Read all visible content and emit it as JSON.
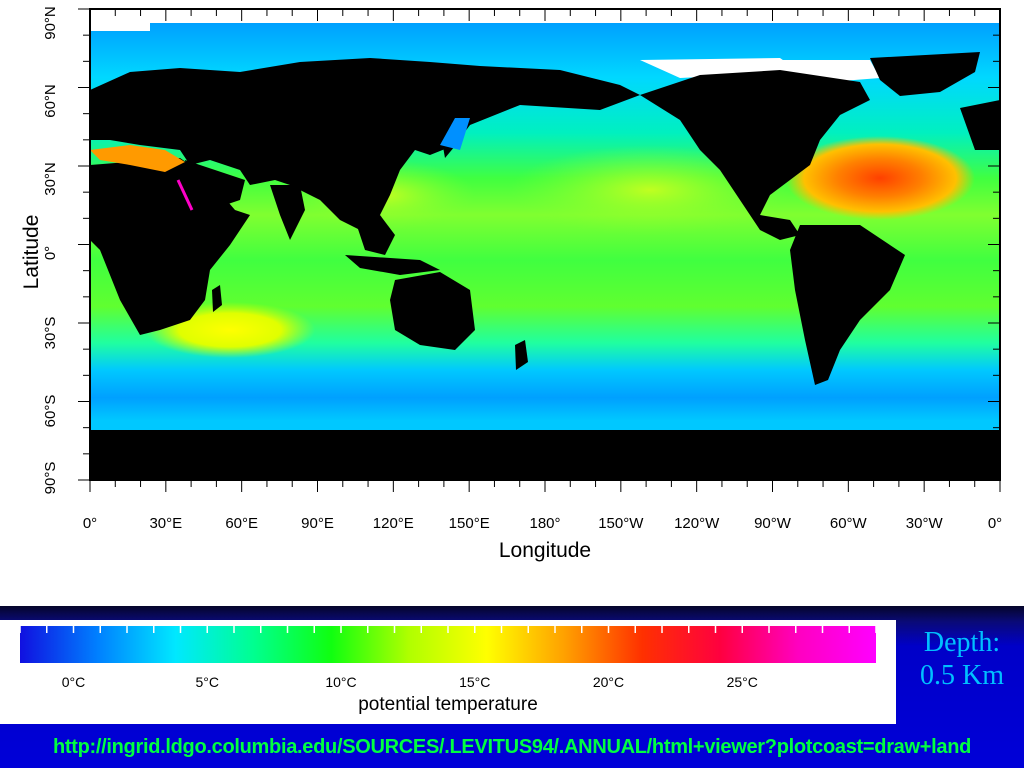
{
  "map": {
    "xlabel": "Longitude",
    "ylabel": "Latitude",
    "lon_ticks": [
      "0°",
      "30°E",
      "60°E",
      "90°E",
      "120°E",
      "150°E",
      "180°",
      "150°W",
      "120°W",
      "90°W",
      "60°W",
      "30°W",
      "0°"
    ],
    "lat_ticks": [
      "90°N",
      "60°N",
      "30°N",
      "0°",
      "30°S",
      "60°S",
      "90°S"
    ],
    "land_color": "#000000",
    "missing_color": "#ffffff"
  },
  "legend": {
    "title": "potential temperature",
    "labels": [
      "0°C",
      "5°C",
      "10°C",
      "15°C",
      "20°C",
      "25°C"
    ],
    "range_c": [
      -2,
      30
    ],
    "colors": [
      "#1010e0",
      "#0080ff",
      "#00e8ff",
      "#00ff90",
      "#10ff10",
      "#b0ff00",
      "#ffff00",
      "#ffa000",
      "#ff3000",
      "#ff0040",
      "#ff00c0",
      "#ff00ff"
    ]
  },
  "depth": {
    "label": "Depth:",
    "value": "0.5 Km"
  },
  "source": {
    "url": "http://ingrid.ldgo.columbia.edu/SOURCES/.LEVITUS94/.ANNUAL/html+viewer?plotcoast=draw+land"
  }
}
